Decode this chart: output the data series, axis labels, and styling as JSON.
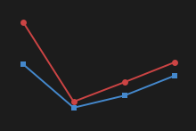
{
  "x": [
    0,
    1,
    2,
    3
  ],
  "red_y": [
    100,
    -19,
    10,
    40
  ],
  "blue_y": [
    37,
    -28,
    -10,
    20
  ],
  "red_color": "#cc4444",
  "blue_color": "#4488cc",
  "background_color": "#1c1c1c",
  "marker_size_red": 5,
  "marker_size_blue": 4,
  "linewidth": 1.4,
  "xlim": [
    -0.3,
    3.3
  ],
  "ylim": [
    -55,
    125
  ]
}
